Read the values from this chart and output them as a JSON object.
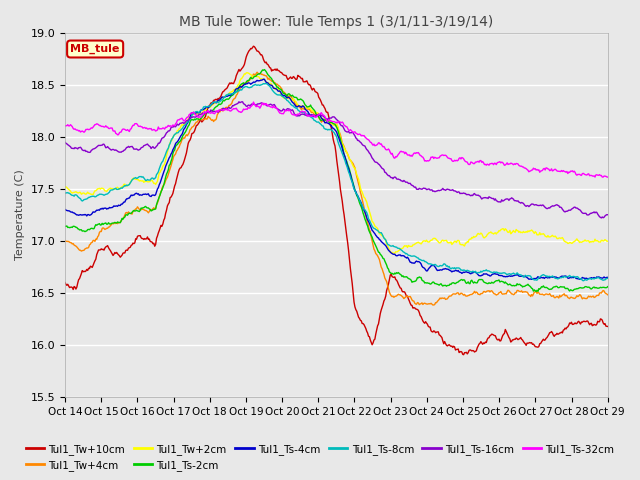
{
  "title": "MB Tule Tower: Tule Temps 1 (3/1/11-3/19/14)",
  "ylabel": "Temperature (C)",
  "ylim": [
    15.5,
    19.0
  ],
  "bg_color": "#e8e8e8",
  "legend_box_label": "MB_tule",
  "x_ticks": [
    "Oct 14",
    "Oct 15",
    "Oct 16",
    "Oct 17",
    "Oct 18",
    "Oct 19",
    "Oct 20",
    "Oct 21",
    "Oct 22",
    "Oct 23",
    "Oct 24",
    "Oct 25",
    "Oct 26",
    "Oct 27",
    "Oct 28",
    "Oct 29"
  ],
  "series": [
    {
      "label": "Tul1_Tw+10cm",
      "color": "#cc0000",
      "lw": 1.0
    },
    {
      "label": "Tul1_Tw+4cm",
      "color": "#ff8800",
      "lw": 1.0
    },
    {
      "label": "Tul1_Tw+2cm",
      "color": "#ffff00",
      "lw": 1.0
    },
    {
      "label": "Tul1_Ts-2cm",
      "color": "#00cc00",
      "lw": 1.0
    },
    {
      "label": "Tul1_Ts-4cm",
      "color": "#0000cc",
      "lw": 1.0
    },
    {
      "label": "Tul1_Ts-8cm",
      "color": "#00bbbb",
      "lw": 1.0
    },
    {
      "label": "Tul1_Ts-16cm",
      "color": "#8800cc",
      "lw": 1.0
    },
    {
      "label": "Tul1_Ts-32cm",
      "color": "#ff00ff",
      "lw": 1.0
    }
  ],
  "n_points": 600,
  "yticks": [
    15.5,
    16.0,
    16.5,
    17.0,
    17.5,
    18.0,
    18.5,
    19.0
  ]
}
